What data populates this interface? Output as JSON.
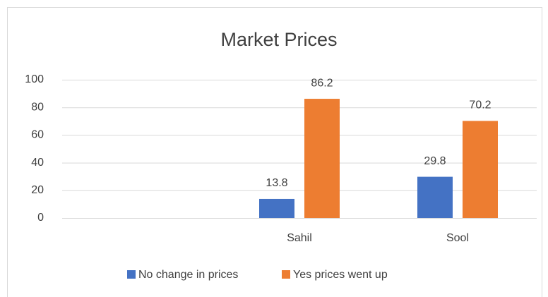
{
  "chart_data": {
    "type": "bar",
    "title": "Market Prices",
    "categories": [
      null,
      "Sahil",
      "Sool"
    ],
    "series": [
      {
        "name": "No change in prices",
        "color": "#4472c4",
        "values": [
          null,
          13.8,
          29.8
        ]
      },
      {
        "name": "Yes prices went up",
        "color": "#ed7d31",
        "values": [
          null,
          86.2,
          70.2
        ]
      }
    ],
    "ylim": [
      0,
      100
    ],
    "yticks": [
      0,
      20,
      40,
      60,
      80,
      100
    ],
    "grid": true,
    "legend": "bottom"
  }
}
